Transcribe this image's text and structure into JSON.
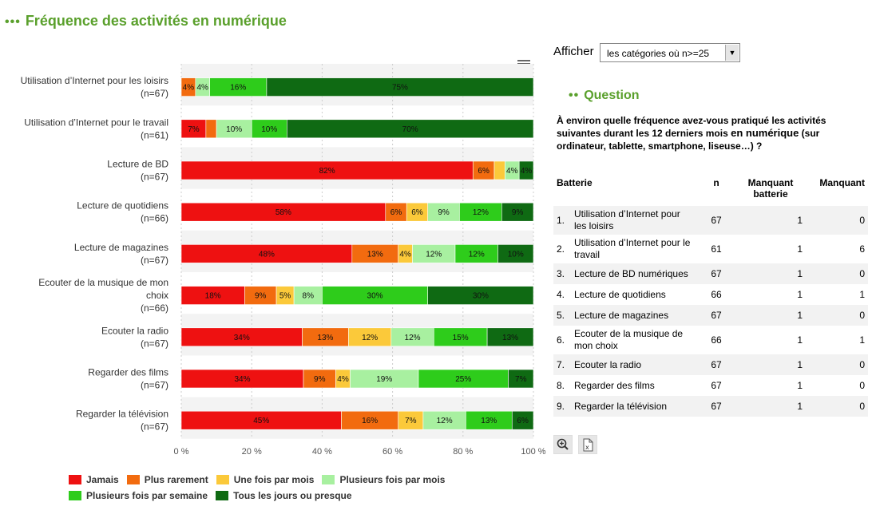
{
  "header": {
    "title": "Fréquence des activités en numérique"
  },
  "controls": {
    "afficher_label": "Afficher",
    "select_value": "les catégories où n>=25"
  },
  "question": {
    "title": "Question",
    "text_before": "À environ quelle fréquence avez-vous pratiqué les activités suivantes durant les 12 derniers mois ",
    "text_emph": "en numérique",
    "text_after": " (sur ordinateur, tablette, smartphone, liseuse…) ?"
  },
  "table": {
    "headers": [
      "Batterie",
      "n",
      "Manquant batterie",
      "Manquant"
    ],
    "rows": [
      {
        "num": "1.",
        "label": "Utilisation d’Internet pour les loisirs",
        "n": "67",
        "mb": "1",
        "m": "0"
      },
      {
        "num": "2.",
        "label": "Utilisation d’Internet pour le travail",
        "n": "61",
        "mb": "1",
        "m": "6"
      },
      {
        "num": "3.",
        "label": "Lecture de BD numériques",
        "n": "67",
        "mb": "1",
        "m": "0"
      },
      {
        "num": "4.",
        "label": "Lecture de quotidiens",
        "n": "66",
        "mb": "1",
        "m": "1"
      },
      {
        "num": "5.",
        "label": "Lecture de magazines",
        "n": "67",
        "mb": "1",
        "m": "0"
      },
      {
        "num": "6.",
        "label": "Ecouter de la musique de mon choix",
        "n": "66",
        "mb": "1",
        "m": "1"
      },
      {
        "num": "7.",
        "label": "Ecouter la radio",
        "n": "67",
        "mb": "1",
        "m": "0"
      },
      {
        "num": "8.",
        "label": "Regarder des films",
        "n": "67",
        "mb": "1",
        "m": "0"
      },
      {
        "num": "9.",
        "label": "Regarder la télévision",
        "n": "67",
        "mb": "1",
        "m": "0"
      }
    ]
  },
  "icons": {
    "menu": "hamburger-menu-icon",
    "zoom": "zoom-in-icon",
    "export": "excel-export-icon"
  },
  "chart_data": {
    "type": "bar",
    "orientation": "horizontal",
    "stacked": "percent",
    "categories": [
      [
        "Utilisation d’Internet pour les loisirs",
        "(n=67)"
      ],
      [
        "Utilisation d’Internet pour le travail",
        "(n=61)"
      ],
      [
        "Lecture de BD",
        "(n=67)"
      ],
      [
        "Lecture de quotidiens",
        "(n=66)"
      ],
      [
        "Lecture de magazines",
        "(n=67)"
      ],
      [
        "Ecouter de la musique de mon",
        "choix",
        "(n=66)"
      ],
      [
        "Ecouter la radio",
        "(n=67)"
      ],
      [
        "Regarder des films",
        "(n=67)"
      ],
      [
        "Regarder la télévision",
        "(n=67)"
      ]
    ],
    "series": [
      {
        "name": "Jamais",
        "color": "#ee1111",
        "values": [
          0,
          7,
          82,
          58,
          48,
          18,
          34,
          34,
          45
        ]
      },
      {
        "name": "Plus rarement",
        "color": "#f26b0f",
        "values": [
          4,
          3,
          6,
          6,
          13,
          9,
          13,
          9,
          16
        ]
      },
      {
        "name": "Une fois par mois",
        "color": "#fbc93a",
        "values": [
          0,
          0,
          3,
          6,
          4,
          5,
          12,
          4,
          7
        ]
      },
      {
        "name": "Plusieurs fois par mois",
        "color": "#a8f0a0",
        "values": [
          4,
          10,
          4,
          9,
          12,
          8,
          12,
          19,
          12
        ]
      },
      {
        "name": "Plusieurs fois par semaine",
        "color": "#2ecc1b",
        "values": [
          16,
          10,
          0,
          12,
          12,
          30,
          15,
          25,
          13
        ]
      },
      {
        "name": "Tous les jours ou presque",
        "color": "#0f6a13",
        "values": [
          75,
          70,
          4,
          9,
          10,
          30,
          13,
          7,
          6
        ]
      }
    ],
    "data_labels": [
      [
        "",
        "4%",
        "",
        "4%",
        "16%",
        "75%"
      ],
      [
        "7%",
        "",
        "",
        "10%",
        "10%",
        "70%"
      ],
      [
        "82%",
        "6%",
        "",
        "4%",
        "",
        "4%"
      ],
      [
        "58%",
        "6%",
        "6%",
        "9%",
        "12%",
        "9%"
      ],
      [
        "48%",
        "13%",
        "4%",
        "12%",
        "12%",
        "10%"
      ],
      [
        "18%",
        "9%",
        "5%",
        "8%",
        "30%",
        "30%"
      ],
      [
        "34%",
        "13%",
        "12%",
        "12%",
        "15%",
        "13%"
      ],
      [
        "34%",
        "9%",
        "4%",
        "19%",
        "25%",
        "7%"
      ],
      [
        "45%",
        "16%",
        "7%",
        "12%",
        "13%",
        "6%"
      ]
    ],
    "xlim": [
      0,
      100
    ],
    "xticks": [
      "0 %",
      "20 %",
      "40 %",
      "60 %",
      "80 %",
      "100 %"
    ],
    "grid": true,
    "legend_position": "bottom"
  }
}
